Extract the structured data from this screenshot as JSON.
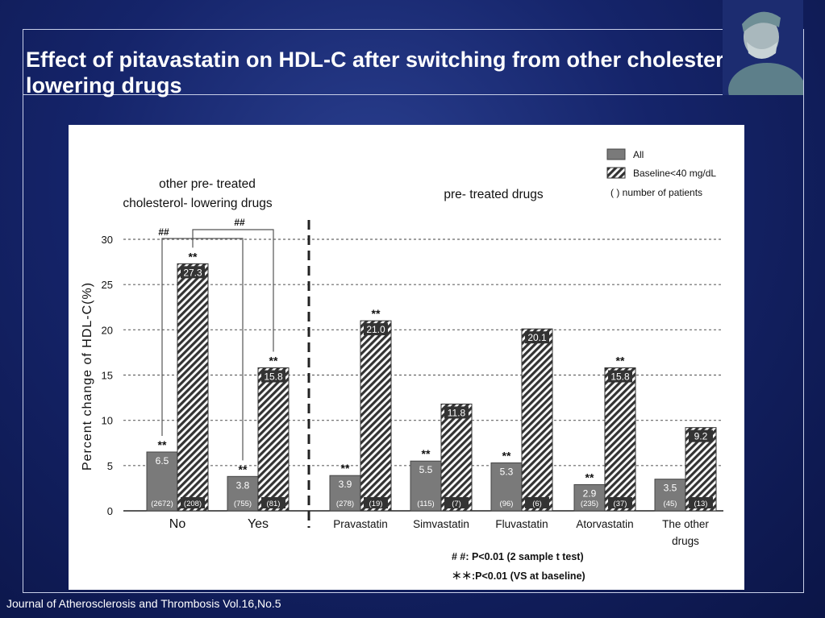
{
  "slide": {
    "title": "Effect of pitavastatin on HDL-C after switching from other cholesterol-lowering drugs",
    "citation": "Journal of Atherosclerosis and Thrombosis Vol.16,No.5"
  },
  "chart_data": {
    "type": "bar",
    "ylabel": "Percent change of HDL-C(%)",
    "ylim": [
      0,
      30
    ],
    "yticks": [
      0,
      5,
      10,
      15,
      20,
      25,
      30
    ],
    "grid": true,
    "legend_position": "top-right",
    "legend": [
      "All",
      "Baseline<40 mg/dL",
      "( ) number of patients"
    ],
    "group_labels": {
      "left": [
        "other pre- treated",
        "cholesterol- lowering drugs"
      ],
      "right": "pre- treated drugs"
    },
    "categories": [
      "No",
      "Yes",
      "Pravastatin",
      "Simvastatin",
      "Fluvastatin",
      "Atorvastatin",
      "The other drugs"
    ],
    "category_lines": [
      [
        "No"
      ],
      [
        "Yes"
      ],
      [
        "Pravastatin"
      ],
      [
        "Simvastatin"
      ],
      [
        "Fluvastatin"
      ],
      [
        "Atorvastatin"
      ],
      [
        "The other",
        "drugs"
      ]
    ],
    "series": [
      {
        "name": "All",
        "values": [
          6.5,
          3.8,
          3.9,
          5.5,
          5.3,
          2.9,
          3.5
        ],
        "value_labels": [
          "6.5",
          "3.8",
          "3.9",
          "5.5",
          "5.3",
          "2.9",
          "3.5"
        ],
        "n": [
          "(2672)",
          "(755)",
          "(278)",
          "(115)",
          "(96)",
          "(235)",
          "(45)"
        ],
        "significance": [
          "**",
          "**",
          "**",
          "**",
          "**",
          "**",
          ""
        ],
        "color": "#7a7a7a"
      },
      {
        "name": "Baseline<40 mg/dL",
        "values": [
          27.3,
          15.8,
          21.0,
          11.8,
          20.1,
          15.8,
          9.2
        ],
        "value_labels": [
          "27.3",
          "15.8",
          "21.0",
          "11.8",
          "20.1",
          "15.8",
          "9.2"
        ],
        "n": [
          "(208)",
          "(81)",
          "(19)",
          "(7)",
          "(6)",
          "(37)",
          "(13)"
        ],
        "significance": [
          "**",
          "**",
          "**",
          "",
          "",
          "**",
          ""
        ],
        "color": "#333333"
      }
    ],
    "comparison_brackets": [
      {
        "label": "##",
        "from": "No:All",
        "to": "Yes:All"
      },
      {
        "label": "##",
        "from": "No:Baseline<40 mg/dL",
        "to": "Yes:Baseline<40 mg/dL"
      }
    ],
    "footnotes": [
      "# #: P<0.01 (2 sample  t test)",
      "＊＊:P<0.01 (VS at baseline)"
    ]
  }
}
